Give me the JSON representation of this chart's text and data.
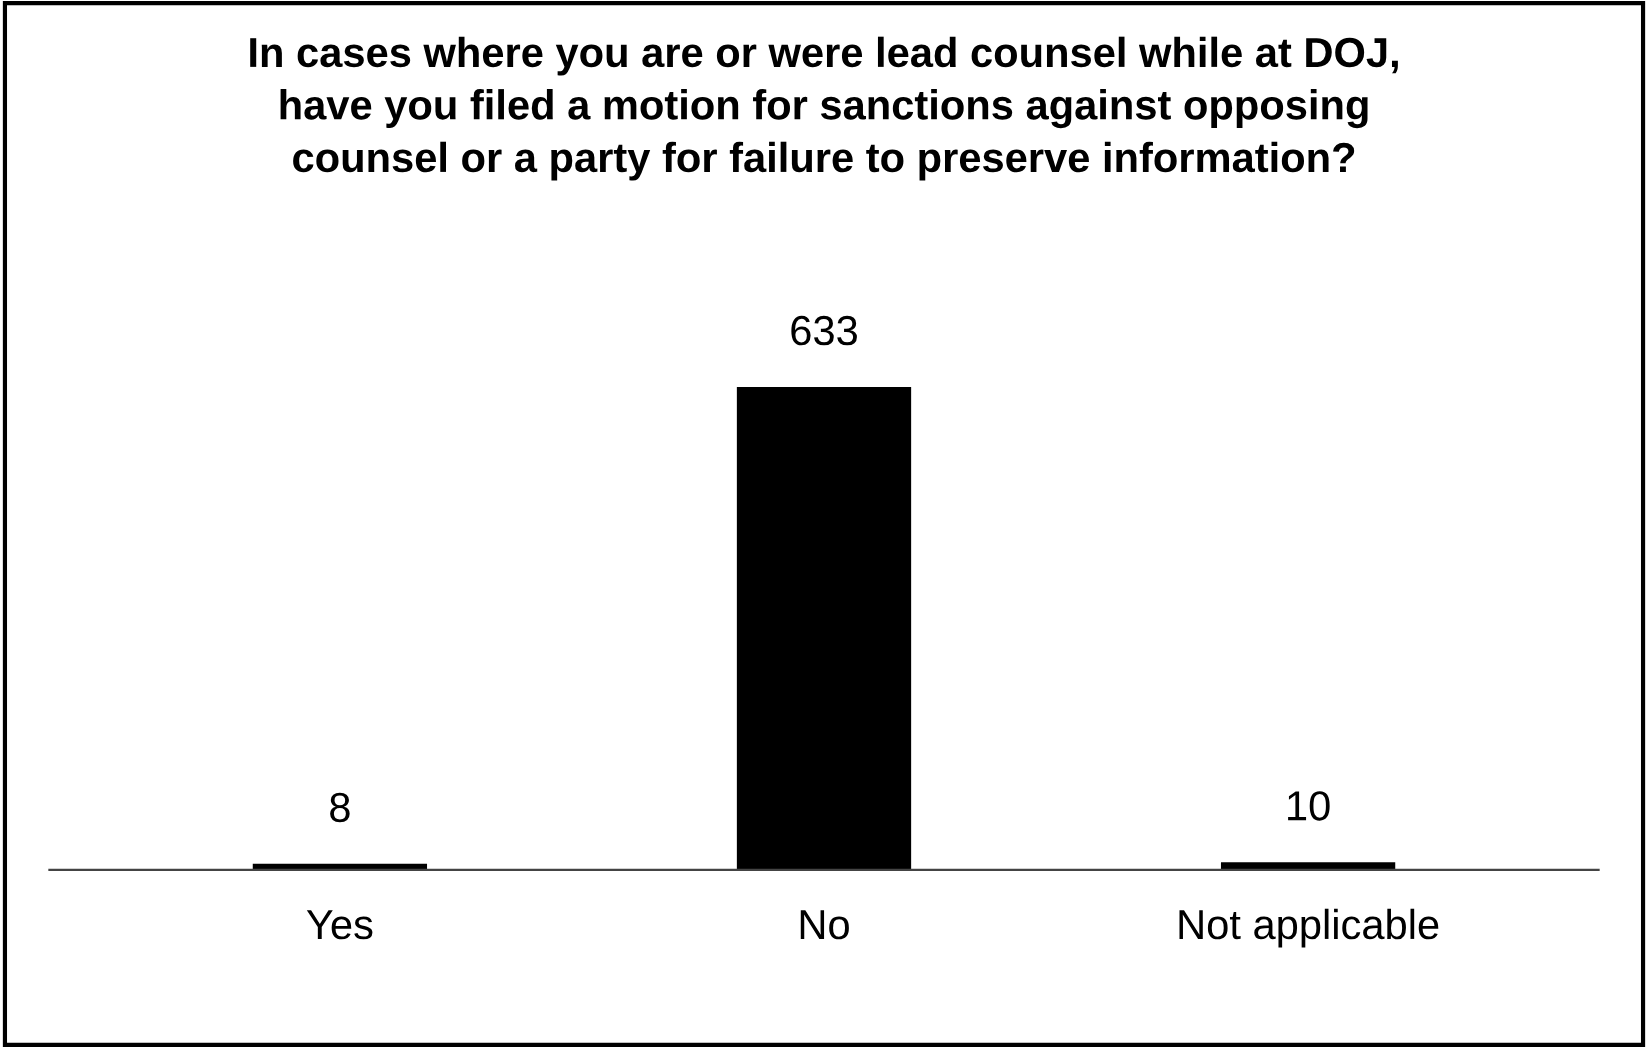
{
  "chart_data": {
    "type": "bar",
    "title": "In cases where you are or were lead counsel while at DOJ,\nhave you filed a motion for sanctions against opposing\ncounsel or a party for failure to preserve information?",
    "categories": [
      "Yes",
      "No",
      "Not applicable"
    ],
    "values": [
      8,
      633,
      10
    ],
    "color": "#000000",
    "data_labels": true,
    "grid": false,
    "legend": false
  }
}
